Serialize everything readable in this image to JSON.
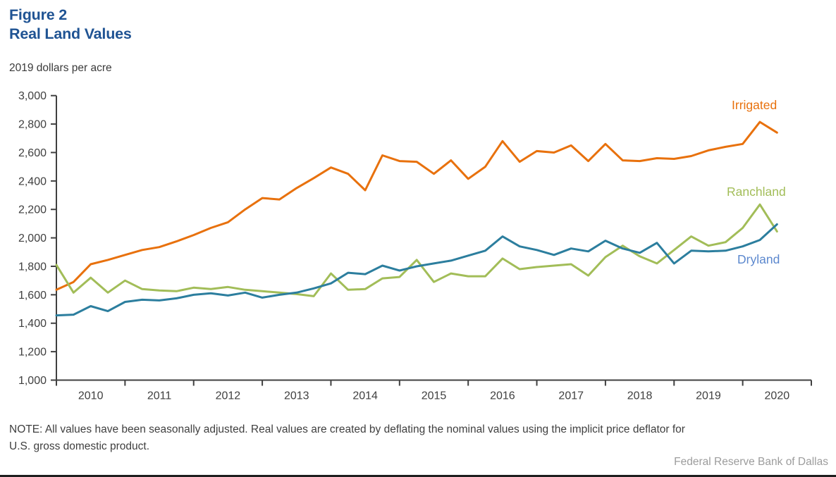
{
  "header": {
    "figure_label": "Figure 2",
    "title": "Real Land Values",
    "units_label": "2019 dollars per acre"
  },
  "note": {
    "line1": "NOTE: All values have been seasonally adjusted. Real values are created by deflating the nominal values using the implicit price deflator for",
    "line2": "U.S. gross domestic product."
  },
  "attribution": "Federal Reserve Bank of Dallas",
  "colors": {
    "title_blue": "#1F5393",
    "axis": "#404040",
    "irrigated": "#E8710D",
    "ranchland": "#A2BD58",
    "dryland_line": "#2C7E9E",
    "dryland_label": "#5C88CE"
  },
  "chart_data": {
    "type": "line",
    "title": "Real Land Values",
    "ylabel": "2019 dollars per acre",
    "frequency": "quarterly",
    "x_start": "2010 Q1",
    "x_end": "2020 Q3",
    "x_ticklabels": [
      "2010",
      "2011",
      "2012",
      "2013",
      "2014",
      "2015",
      "2016",
      "2017",
      "2018",
      "2019",
      "2020"
    ],
    "ylim": [
      1000,
      3000
    ],
    "ytick_step": 200,
    "grid": false,
    "legend_position": "inline-labels-right",
    "series": [
      {
        "name": "Irrigated",
        "color": "#E8710D",
        "label_color": "#E8710D",
        "values": [
          1635,
          1690,
          1815,
          1845,
          1880,
          1915,
          1935,
          1975,
          2020,
          2070,
          2110,
          2200,
          2280,
          2270,
          2350,
          2420,
          2495,
          2450,
          2335,
          2580,
          2540,
          2535,
          2450,
          2545,
          2415,
          2500,
          2680,
          2535,
          2610,
          2600,
          2650,
          2540,
          2660,
          2545,
          2540,
          2560,
          2555,
          2575,
          2615,
          2640,
          2660,
          2815,
          2740
        ]
      },
      {
        "name": "Ranchland",
        "color": "#A2BD58",
        "label_color": "#A2BD58",
        "values": [
          1810,
          1615,
          1720,
          1615,
          1700,
          1640,
          1630,
          1625,
          1650,
          1640,
          1655,
          1635,
          1625,
          1615,
          1605,
          1590,
          1750,
          1635,
          1640,
          1715,
          1725,
          1845,
          1690,
          1750,
          1730,
          1730,
          1855,
          1780,
          1795,
          1805,
          1815,
          1735,
          1865,
          1945,
          1870,
          1820,
          1915,
          2010,
          1945,
          1970,
          2070,
          2235,
          2045
        ]
      },
      {
        "name": "Dryland",
        "color": "#2C7E9E",
        "label_color": "#5C88CE",
        "values": [
          1455,
          1460,
          1520,
          1485,
          1550,
          1565,
          1560,
          1575,
          1600,
          1610,
          1595,
          1615,
          1580,
          1600,
          1615,
          1645,
          1680,
          1755,
          1745,
          1805,
          1770,
          1800,
          1820,
          1840,
          1875,
          1910,
          2010,
          1940,
          1915,
          1880,
          1925,
          1905,
          1980,
          1925,
          1895,
          1965,
          1820,
          1910,
          1905,
          1910,
          1940,
          1985,
          2095
        ]
      }
    ]
  }
}
